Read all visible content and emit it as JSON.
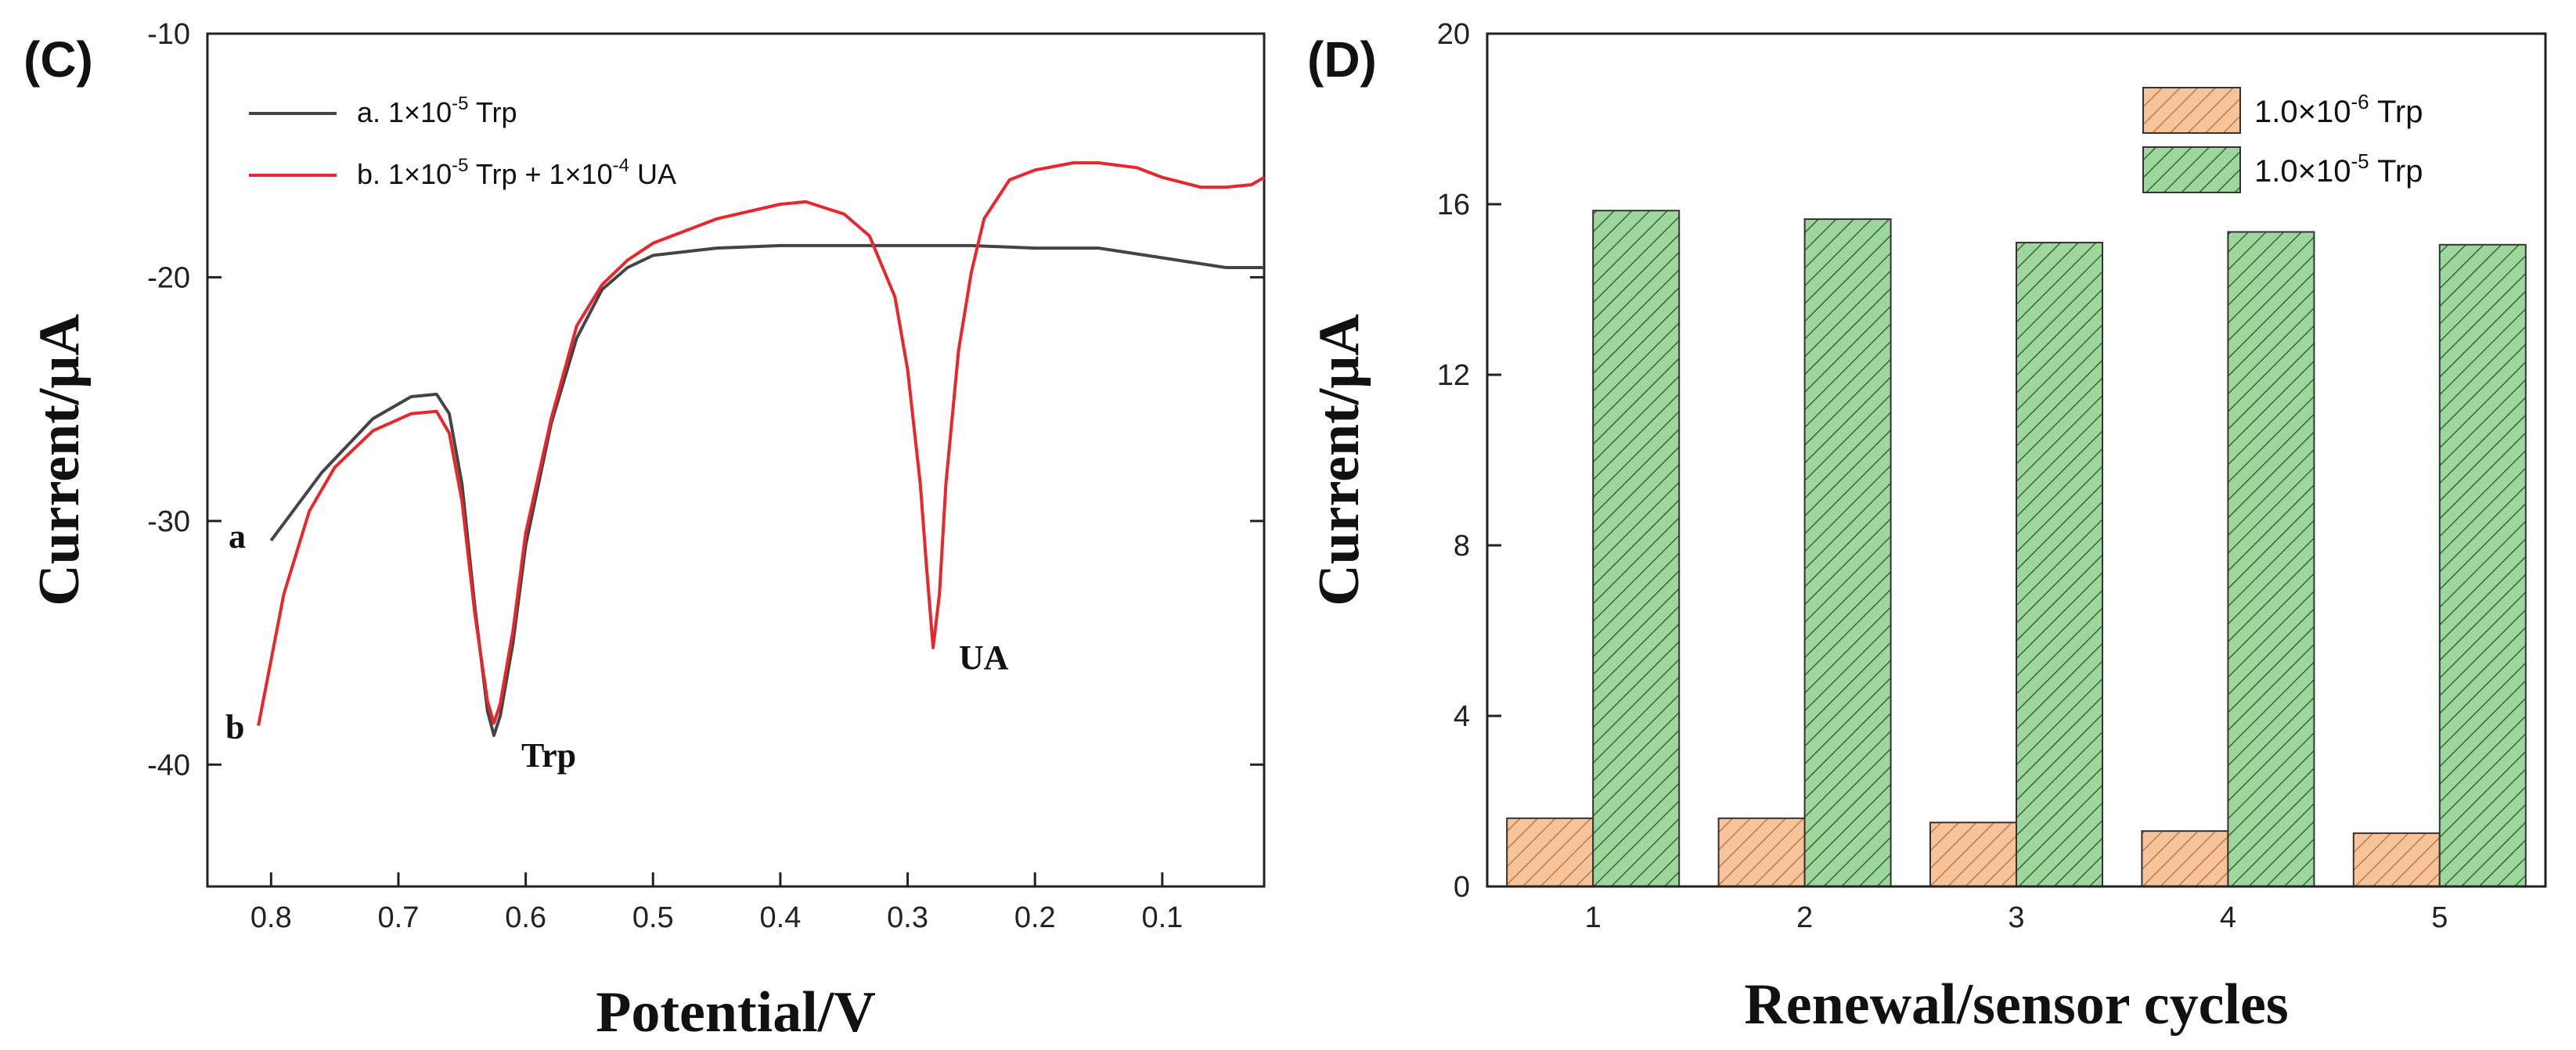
{
  "chart_data": [
    {
      "panel_label": "(C)",
      "type": "line",
      "xlabel": "Potential/V",
      "ylabel": "Current/μA",
      "xlim": [
        0.85,
        0.02
      ],
      "ylim": [
        -45,
        -10
      ],
      "xticks": [
        "0.8",
        "0.7",
        "0.6",
        "0.5",
        "0.4",
        "0.3",
        "0.2",
        "0.1"
      ],
      "xtick_values": [
        0.8,
        0.7,
        0.6,
        0.5,
        0.4,
        0.3,
        0.2,
        0.1
      ],
      "yticks": [
        "-10",
        "-20",
        "-30",
        "-40"
      ],
      "ytick_values": [
        -10,
        -20,
        -30,
        -40
      ],
      "colors": {
        "a": "#444444",
        "b": "#e8262b"
      },
      "legend": {
        "a": {
          "base": "a. 1×10",
          "exp": "-5",
          "rest": " Trp"
        },
        "b": {
          "base": "b. 1×10",
          "exp": "-5",
          "mid": " Trp + 1×10",
          "exp2": "-4",
          "rest": " UA"
        }
      },
      "series": [
        {
          "name": "a",
          "x": [
            0.8,
            0.76,
            0.72,
            0.69,
            0.67,
            0.66,
            0.65,
            0.64,
            0.63,
            0.625,
            0.62,
            0.61,
            0.6,
            0.58,
            0.56,
            0.54,
            0.52,
            0.5,
            0.45,
            0.4,
            0.35,
            0.3,
            0.25,
            0.2,
            0.15,
            0.1,
            0.05,
            0.02
          ],
          "y": [
            -30.8,
            -28.0,
            -25.8,
            -24.9,
            -24.8,
            -25.6,
            -28.5,
            -33.5,
            -37.8,
            -38.8,
            -38.0,
            -35.0,
            -31.0,
            -26.0,
            -22.5,
            -20.5,
            -19.6,
            -19.1,
            -18.8,
            -18.7,
            -18.7,
            -18.7,
            -18.7,
            -18.8,
            -18.8,
            -19.2,
            -19.6,
            -19.6
          ]
        },
        {
          "name": "b",
          "x": [
            0.81,
            0.79,
            0.77,
            0.75,
            0.72,
            0.69,
            0.67,
            0.66,
            0.65,
            0.64,
            0.63,
            0.625,
            0.62,
            0.61,
            0.6,
            0.58,
            0.56,
            0.54,
            0.52,
            0.5,
            0.45,
            0.4,
            0.38,
            0.35,
            0.33,
            0.31,
            0.3,
            0.29,
            0.285,
            0.28,
            0.275,
            0.27,
            0.26,
            0.25,
            0.24,
            0.22,
            0.2,
            0.17,
            0.15,
            0.12,
            0.1,
            0.07,
            0.05,
            0.03,
            0.02
          ],
          "y": [
            -38.4,
            -33.0,
            -29.6,
            -27.8,
            -26.3,
            -25.6,
            -25.5,
            -26.4,
            -29.2,
            -33.8,
            -37.4,
            -38.3,
            -37.5,
            -34.5,
            -30.5,
            -25.8,
            -22.0,
            -20.3,
            -19.3,
            -18.6,
            -17.6,
            -17.0,
            -16.9,
            -17.4,
            -18.3,
            -20.8,
            -23.8,
            -28.5,
            -32.0,
            -35.2,
            -33.0,
            -28.5,
            -23.0,
            -19.8,
            -17.6,
            -16.0,
            -15.6,
            -15.3,
            -15.3,
            -15.5,
            -15.9,
            -16.3,
            -16.3,
            -16.2,
            -15.9
          ]
        }
      ],
      "annotations": {
        "a_label": "a",
        "b_label": "b",
        "trp": "Trp",
        "ua": "UA"
      }
    },
    {
      "panel_label": "(D)",
      "type": "bar",
      "xlabel": "Renewal/sensor cycles",
      "ylabel": "Current/μA",
      "ylim": [
        0,
        20
      ],
      "yticks": [
        "0",
        "4",
        "8",
        "12",
        "16",
        "20"
      ],
      "ytick_values": [
        0,
        4,
        8,
        12,
        16,
        20
      ],
      "categories": [
        "1",
        "2",
        "3",
        "4",
        "5"
      ],
      "colors": {
        "low": "#f6c39a",
        "high": "#9ed69e",
        "low_hatch": "#c07a44",
        "high_hatch": "#2e6b2e"
      },
      "legend": {
        "low": {
          "base": "1.0×10",
          "exp": "-6",
          "rest": " Trp"
        },
        "high": {
          "base": "1.0×10",
          "exp": "-5",
          "rest": " Trp"
        }
      },
      "series": [
        {
          "name": "1.0×10-6 Trp",
          "values": [
            1.6,
            1.6,
            1.5,
            1.3,
            1.25
          ]
        },
        {
          "name": "1.0×10-5 Trp",
          "values": [
            15.85,
            15.65,
            15.1,
            15.35,
            15.05
          ]
        }
      ]
    }
  ]
}
